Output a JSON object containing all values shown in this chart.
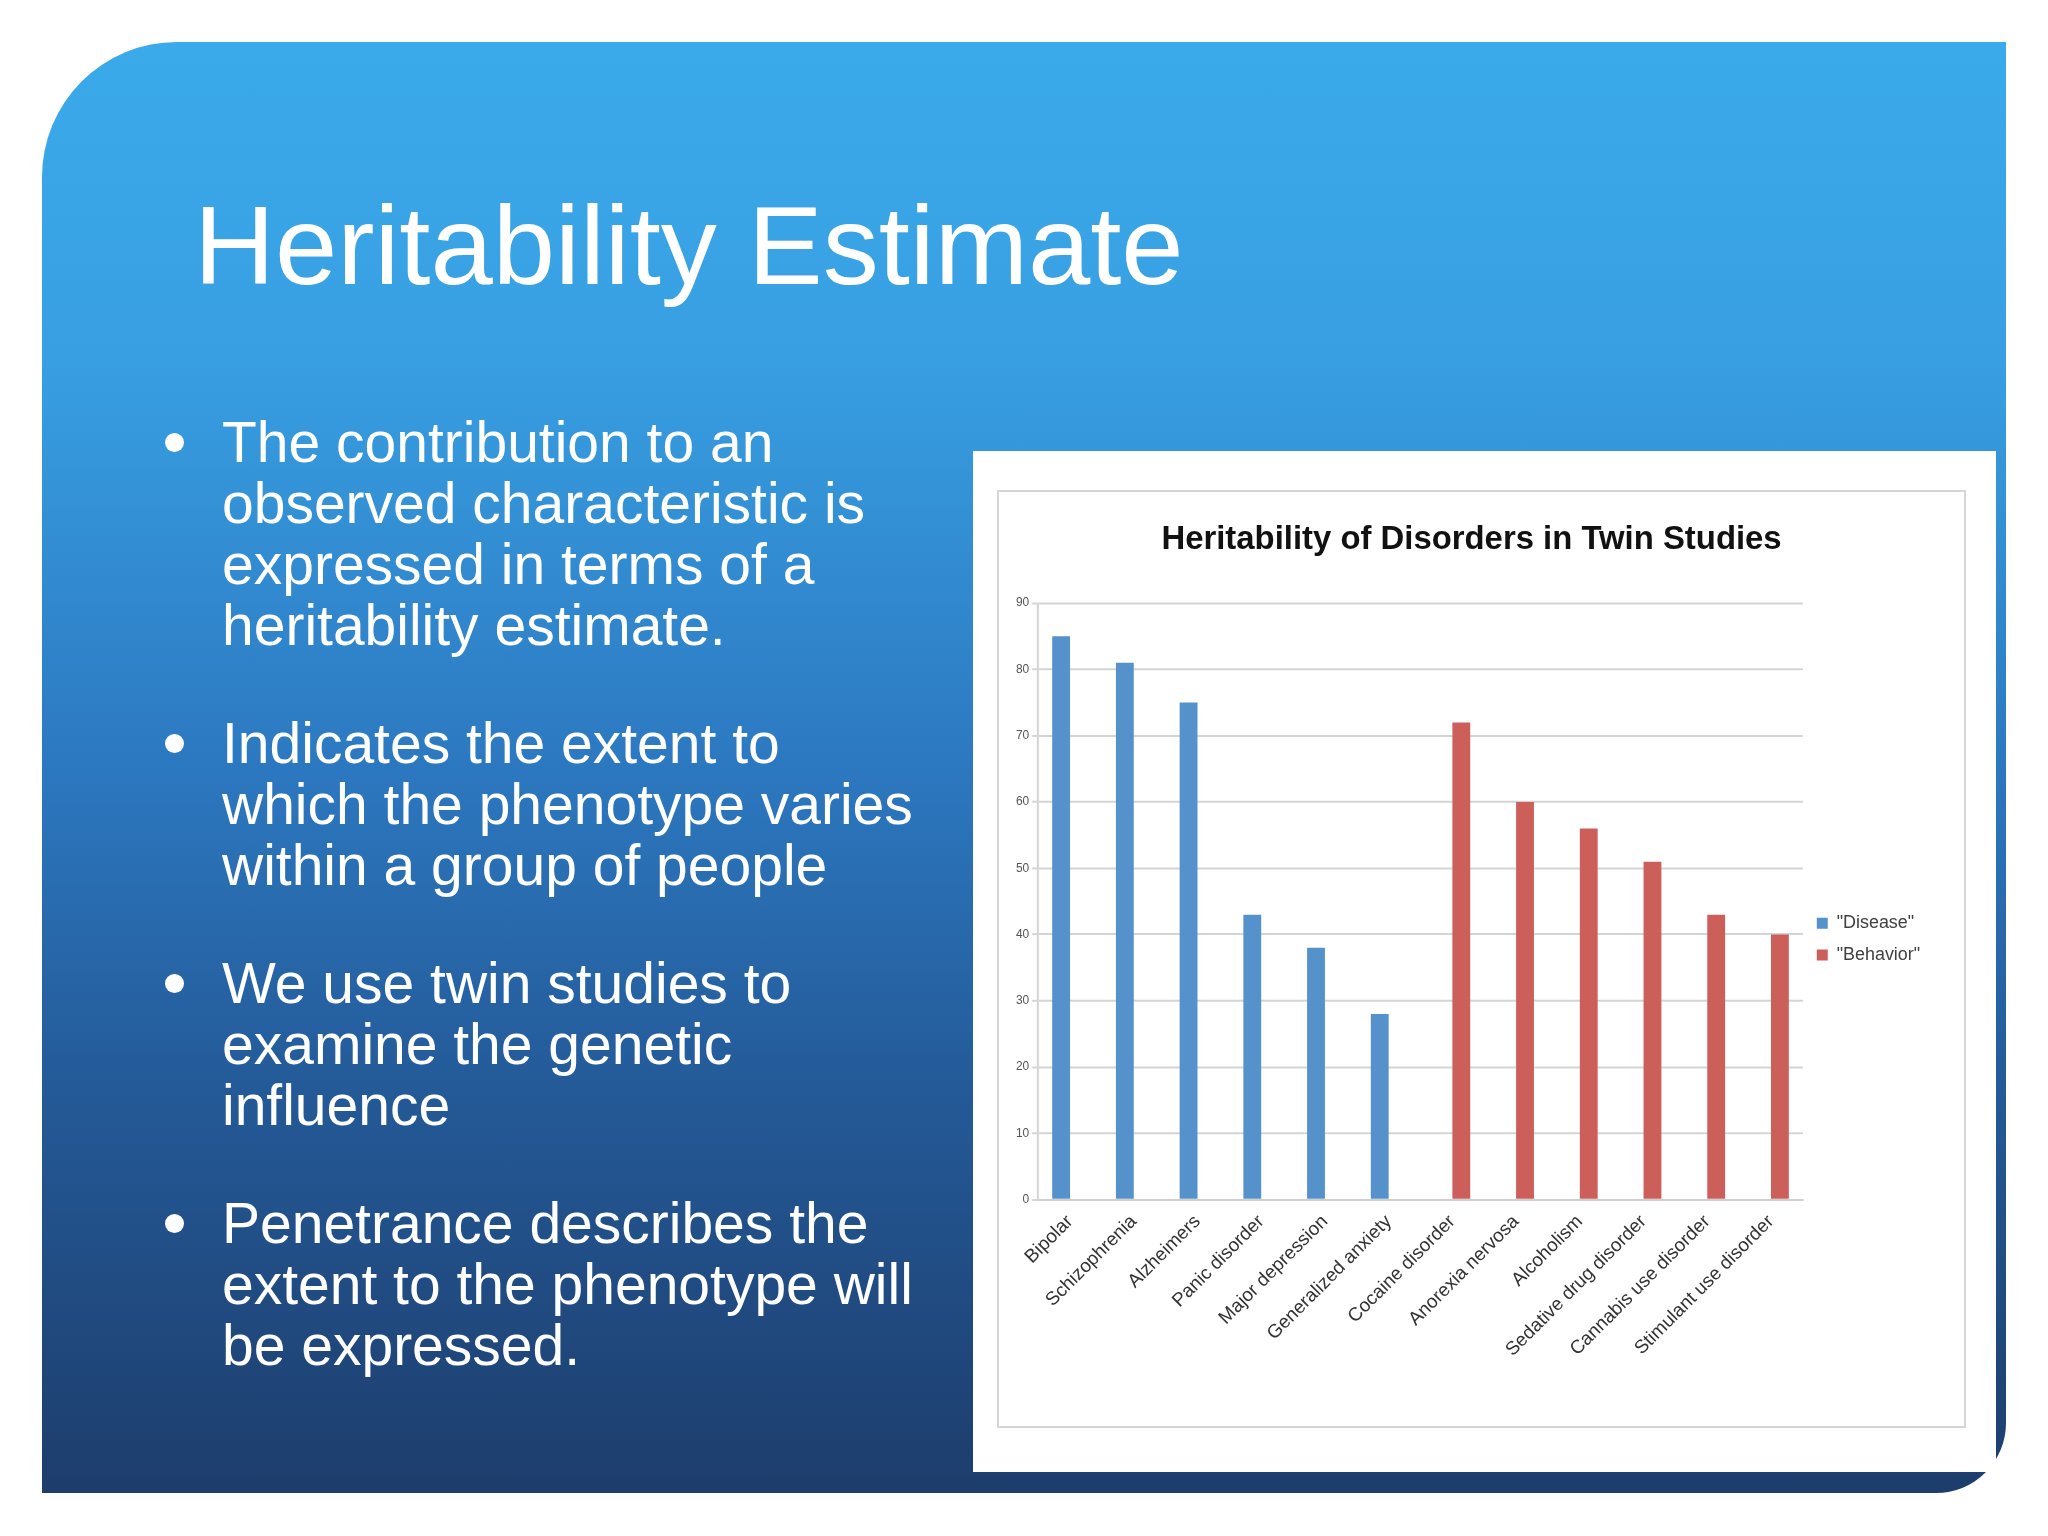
{
  "chart_data": {
    "type": "bar",
    "title": "Heritability of Disorders in Twin Studies",
    "categories": [
      "Bipolar",
      "Schizophrenia",
      "Alzheimers",
      "Panic disorder",
      "Major depression",
      "Generalized anxiety",
      "Cocaine disorder",
      "Anorexia nervosa",
      "Alcoholism",
      "Sedative drug disorder",
      "Cannabis use disorder",
      "Stimulant use disorder"
    ],
    "series": [
      {
        "name": "\"Disease\"",
        "color": "#5592cb",
        "values": [
          85,
          81,
          75,
          43,
          38,
          28,
          null,
          null,
          null,
          null,
          null,
          null
        ]
      },
      {
        "name": "\"Behavior\"",
        "color": "#cd5f5b",
        "values": [
          null,
          null,
          null,
          null,
          null,
          null,
          72,
          60,
          56,
          51,
          43,
          40
        ]
      }
    ],
    "ylim": [
      0,
      90
    ],
    "yticks": [
      0,
      10,
      20,
      30,
      40,
      50,
      60,
      70,
      80,
      90
    ],
    "grid": "y",
    "legend": "right",
    "annotations": [
      "Heritability Estimate",
      "The contribution to an observed characteristic is expressed in terms of a heritability estimate.",
      "Indicates the extent to which the phenotype varies within a group of people",
      "We use twin studies to examine the genetic influence",
      "Penetrance describes the extent to the phenotype will be expressed."
    ]
  }
}
